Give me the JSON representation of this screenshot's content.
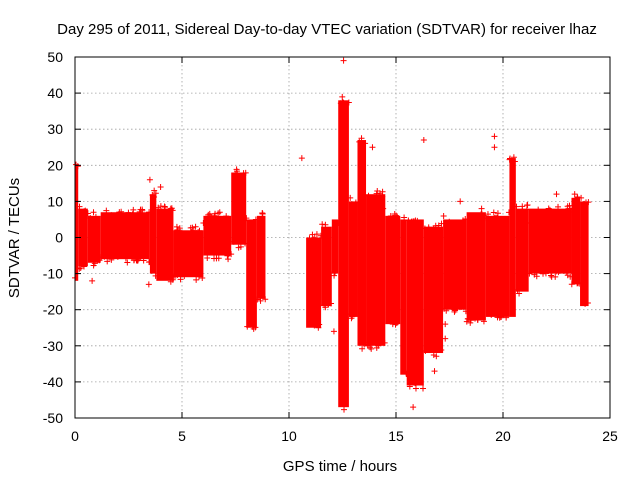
{
  "chart_data": {
    "type": "scatter",
    "title": "Day 295 of 2011, Sidereal Day-to-day VTEC variation (SDTVAR) for receiver lhaz",
    "xlabel": "GPS time / hours",
    "ylabel": "SDTVAR / TECUs",
    "xlim": [
      0,
      25
    ],
    "ylim": [
      -50,
      50
    ],
    "xticks": [
      0,
      5,
      10,
      15,
      20,
      25
    ],
    "yticks": [
      -50,
      -40,
      -30,
      -20,
      -10,
      0,
      10,
      20,
      30,
      40,
      50
    ],
    "grid": true,
    "marker": "+",
    "color": "#ff0000",
    "band_envelope": [
      {
        "start": 0.0,
        "end": 0.15,
        "low": -12,
        "high": 20
      },
      {
        "start": 0.15,
        "end": 0.6,
        "low": -8,
        "high": 8
      },
      {
        "start": 0.6,
        "end": 1.2,
        "low": -7,
        "high": 6
      },
      {
        "start": 1.2,
        "end": 3.5,
        "low": -6,
        "high": 7
      },
      {
        "start": 3.5,
        "end": 3.8,
        "low": -10,
        "high": 12
      },
      {
        "start": 3.8,
        "end": 4.6,
        "low": -12,
        "high": 8
      },
      {
        "start": 4.6,
        "end": 6.0,
        "low": -11,
        "high": 2
      },
      {
        "start": 6.0,
        "end": 7.3,
        "low": -5,
        "high": 6
      },
      {
        "start": 7.3,
        "end": 8.0,
        "low": -2,
        "high": 18
      },
      {
        "start": 8.0,
        "end": 8.5,
        "low": -25,
        "high": 5
      },
      {
        "start": 8.5,
        "end": 8.9,
        "low": -17,
        "high": 6
      },
      {
        "start": 10.8,
        "end": 11.5,
        "low": -25,
        "high": 0
      },
      {
        "start": 11.5,
        "end": 12.0,
        "low": -19,
        "high": 3
      },
      {
        "start": 12.0,
        "end": 12.3,
        "low": -10,
        "high": 5
      },
      {
        "start": 12.3,
        "end": 12.8,
        "low": -47,
        "high": 38
      },
      {
        "start": 12.8,
        "end": 13.2,
        "low": -22,
        "high": 10
      },
      {
        "start": 13.2,
        "end": 13.6,
        "low": -30,
        "high": 27
      },
      {
        "start": 13.6,
        "end": 14.5,
        "low": -30,
        "high": 12
      },
      {
        "start": 14.5,
        "end": 15.2,
        "low": -24,
        "high": 6
      },
      {
        "start": 15.2,
        "end": 15.5,
        "low": -38,
        "high": 5
      },
      {
        "start": 15.5,
        "end": 16.3,
        "low": -41,
        "high": 5
      },
      {
        "start": 16.3,
        "end": 17.2,
        "low": -32,
        "high": 3
      },
      {
        "start": 17.2,
        "end": 18.3,
        "low": -20,
        "high": 5
      },
      {
        "start": 18.3,
        "end": 19.2,
        "low": -23,
        "high": 7
      },
      {
        "start": 19.2,
        "end": 20.3,
        "low": -22,
        "high": 6
      },
      {
        "start": 20.3,
        "end": 20.6,
        "low": -22,
        "high": 22
      },
      {
        "start": 20.6,
        "end": 21.2,
        "low": -15,
        "high": 8
      },
      {
        "start": 21.2,
        "end": 23.2,
        "low": -10,
        "high": 8
      },
      {
        "start": 23.2,
        "end": 23.6,
        "low": -13,
        "high": 11
      },
      {
        "start": 23.6,
        "end": 24.0,
        "low": -19,
        "high": 10
      }
    ],
    "outliers": [
      [
        0.8,
        -12
      ],
      [
        3.45,
        -13
      ],
      [
        3.5,
        16
      ],
      [
        3.7,
        13
      ],
      [
        4.0,
        14
      ],
      [
        6.0,
        4
      ],
      [
        10.6,
        22
      ],
      [
        12.55,
        49
      ],
      [
        12.1,
        -26
      ],
      [
        16.3,
        27
      ],
      [
        16.8,
        -37
      ],
      [
        17.3,
        -28
      ],
      [
        15.8,
        -47
      ],
      [
        13.9,
        25
      ],
      [
        19.6,
        28
      ],
      [
        19.6,
        25
      ],
      [
        21.3,
        4
      ],
      [
        21.9,
        2
      ],
      [
        22.5,
        12
      ],
      [
        23.35,
        12
      ],
      [
        17.3,
        -24
      ],
      [
        18.0,
        10
      ],
      [
        19.0,
        8
      ],
      [
        14.4,
        8
      ]
    ]
  }
}
